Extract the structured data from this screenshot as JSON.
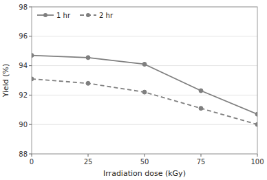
{
  "chart_data": {
    "type": "line",
    "xlabel": "Irradiation dose (kGy)",
    "ylabel": "Yield (%)",
    "x": [
      0,
      25,
      50,
      75,
      100
    ],
    "series": [
      {
        "name": "1 hr",
        "color": "#7f7f7f",
        "line_style": "solid",
        "marker": "circle",
        "values": [
          94.7,
          94.55,
          94.1,
          92.3,
          90.7
        ]
      },
      {
        "name": "2 hr",
        "color": "#7f7f7f",
        "line_style": "dashed",
        "marker": "circle",
        "values": [
          93.1,
          92.8,
          92.2,
          91.1,
          90.0
        ]
      }
    ],
    "xlim": [
      0,
      100
    ],
    "ylim": [
      88,
      98
    ],
    "xticks": [
      0,
      25,
      50,
      75,
      100
    ],
    "yticks": [
      88,
      90,
      92,
      94,
      96,
      98
    ],
    "grid": "y",
    "legend": "upper left"
  }
}
